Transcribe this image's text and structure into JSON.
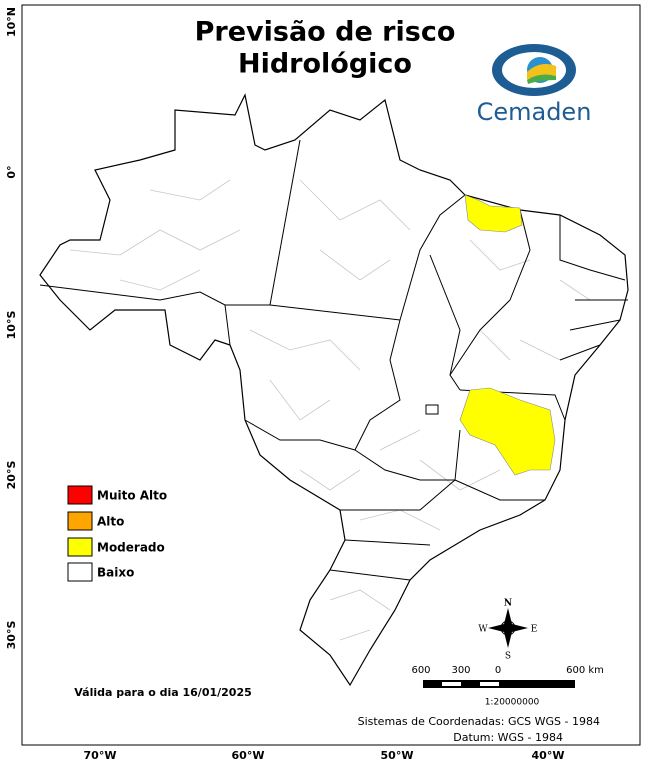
{
  "header": {
    "title": [
      "Previsão de risco",
      "Hidrológico"
    ],
    "logo": "Cemaden"
  },
  "legend": [
    {
      "label": "Muito Alto",
      "color": "#ff0000"
    },
    {
      "label": "Alto",
      "color": "#ffa500"
    },
    {
      "label": "Moderado",
      "color": "#ffff00"
    },
    {
      "label": "Baixo",
      "color": "#ffffff"
    }
  ],
  "axes": {
    "lat": [
      "10°N",
      "0°",
      "10°S",
      "20°S",
      "30°S"
    ],
    "lon": [
      "70°W",
      "60°W",
      "50°W",
      "40°W"
    ]
  },
  "scale": {
    "labels": [
      "600",
      "300",
      "0",
      "600 km"
    ],
    "ratio": "1:20000000"
  },
  "compass": {
    "north": "N",
    "south": "S",
    "east": "E",
    "west": "W"
  },
  "validity": "Válida para o dia 16/01/2025",
  "footer": [
    "Sistemas de Coordenadas: GCS WGS - 1984",
    "Datum: WGS - 1984"
  ]
}
